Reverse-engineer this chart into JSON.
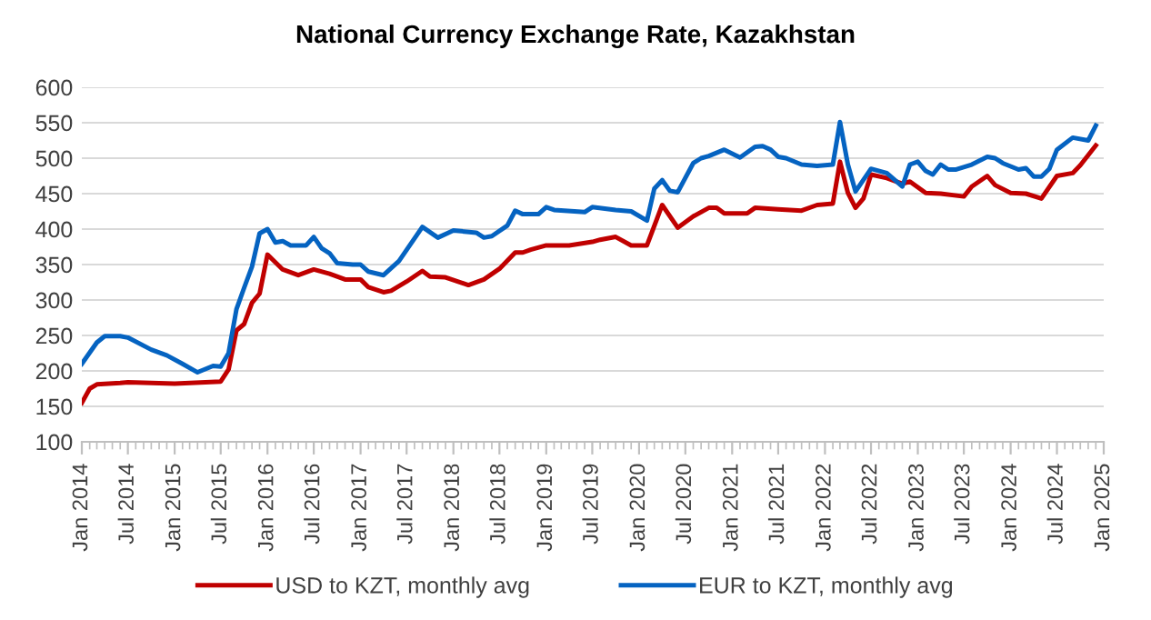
{
  "chart_data": {
    "type": "line",
    "title": "National Currency Exchange Rate, Kazakhstan",
    "series": [
      {
        "name": "USD to KZT, monthly avg",
        "color": "#c00000",
        "x": [
          "2014-01",
          "2014-02",
          "2014-03",
          "2014-06",
          "2014-07",
          "2015-01",
          "2015-07",
          "2015-08",
          "2015-09",
          "2015-10",
          "2015-11",
          "2015-12",
          "2016-01",
          "2016-03",
          "2016-05",
          "2016-07",
          "2016-09",
          "2016-11",
          "2016-12",
          "2017-01",
          "2017-02",
          "2017-04",
          "2017-05",
          "2017-07",
          "2017-09",
          "2017-10",
          "2017-12",
          "2018-03",
          "2018-05",
          "2018-07",
          "2018-09",
          "2018-10",
          "2018-11",
          "2019-01",
          "2019-04",
          "2019-07",
          "2019-08",
          "2019-10",
          "2019-12",
          "2020-02",
          "2020-04",
          "2020-06",
          "2020-08",
          "2020-10",
          "2020-11",
          "2020-12",
          "2021-03",
          "2021-04",
          "2021-07",
          "2021-10",
          "2021-12",
          "2022-02",
          "2022-03",
          "2022-04",
          "2022-05",
          "2022-06",
          "2022-07",
          "2022-09",
          "2022-11",
          "2022-12",
          "2023-02",
          "2023-04",
          "2023-07",
          "2023-08",
          "2023-10",
          "2023-11",
          "2024-01",
          "2024-03",
          "2024-05",
          "2024-07",
          "2024-09",
          "2024-10",
          "2024-12"
        ],
        "values": [
          155,
          175,
          181,
          183,
          184,
          182,
          185,
          202,
          257,
          266,
          296,
          309,
          364,
          343,
          335,
          343,
          337,
          329,
          329,
          329,
          318,
          311,
          313,
          326,
          341,
          333,
          332,
          321,
          329,
          344,
          367,
          367,
          371,
          377,
          377,
          382,
          385,
          389,
          377,
          377,
          434,
          402,
          418,
          430,
          430,
          422,
          422,
          430,
          428,
          426,
          434,
          436,
          495,
          451,
          430,
          443,
          477,
          472,
          464,
          467,
          451,
          450,
          446,
          460,
          475,
          462,
          451,
          450,
          443,
          475,
          479,
          490,
          518
        ]
      },
      {
        "name": "EUR to KZT, monthly avg",
        "color": "#0563c1",
        "x": [
          "2014-01",
          "2014-03",
          "2014-04",
          "2014-06",
          "2014-07",
          "2014-10",
          "2014-12",
          "2015-02",
          "2015-04",
          "2015-06",
          "2015-07",
          "2015-08",
          "2015-09",
          "2015-10",
          "2015-11",
          "2015-12",
          "2016-01",
          "2016-02",
          "2016-03",
          "2016-04",
          "2016-06",
          "2016-07",
          "2016-08",
          "2016-09",
          "2016-10",
          "2016-12",
          "2017-01",
          "2017-02",
          "2017-04",
          "2017-06",
          "2017-09",
          "2017-11",
          "2018-01",
          "2018-04",
          "2018-05",
          "2018-06",
          "2018-08",
          "2018-09",
          "2018-10",
          "2018-12",
          "2019-01",
          "2019-02",
          "2019-06",
          "2019-07",
          "2019-10",
          "2019-12",
          "2020-02",
          "2020-03",
          "2020-04",
          "2020-05",
          "2020-06",
          "2020-08",
          "2020-09",
          "2020-10",
          "2020-12",
          "2021-02",
          "2021-04",
          "2021-05",
          "2021-06",
          "2021-07",
          "2021-08",
          "2021-10",
          "2021-12",
          "2022-02",
          "2022-03",
          "2022-04",
          "2022-05",
          "2022-07",
          "2022-09",
          "2022-11",
          "2022-12",
          "2023-01",
          "2023-02",
          "2023-03",
          "2023-04",
          "2023-05",
          "2023-06",
          "2023-08",
          "2023-10",
          "2023-11",
          "2023-12",
          "2024-02",
          "2024-03",
          "2024-04",
          "2024-05",
          "2024-06",
          "2024-07",
          "2024-09",
          "2024-11",
          "2024-12"
        ],
        "values": [
          210,
          240,
          249,
          249,
          247,
          230,
          222,
          210,
          198,
          207,
          206,
          225,
          287,
          317,
          347,
          394,
          400,
          381,
          383,
          377,
          377,
          389,
          373,
          366,
          352,
          350,
          350,
          340,
          335,
          355,
          403,
          388,
          398,
          395,
          388,
          390,
          405,
          426,
          421,
          421,
          431,
          427,
          424,
          431,
          427,
          425,
          412,
          457,
          469,
          454,
          452,
          493,
          500,
          503,
          512,
          501,
          516,
          517,
          512,
          502,
          500,
          491,
          489,
          491,
          551,
          491,
          453,
          485,
          479,
          460,
          491,
          495,
          482,
          477,
          491,
          484,
          484,
          491,
          502,
          500,
          493,
          484,
          486,
          474,
          474,
          485,
          512,
          529,
          525,
          546
        ]
      }
    ],
    "xlim": [
      "2014-01",
      "2025-01"
    ],
    "xticks": [
      {
        "value": "2014-01",
        "label": "Jan 2014"
      },
      {
        "value": "2014-07",
        "label": "Jul 2014"
      },
      {
        "value": "2015-01",
        "label": "Jan 2015"
      },
      {
        "value": "2015-07",
        "label": "Jul 2015"
      },
      {
        "value": "2016-01",
        "label": "Jan 2016"
      },
      {
        "value": "2016-07",
        "label": "Jul 2016"
      },
      {
        "value": "2017-01",
        "label": "Jan 2017"
      },
      {
        "value": "2017-07",
        "label": "Jul 2017"
      },
      {
        "value": "2018-01",
        "label": "Jan 2018"
      },
      {
        "value": "2018-07",
        "label": "Jul 2018"
      },
      {
        "value": "2019-01",
        "label": "Jan 2019"
      },
      {
        "value": "2019-07",
        "label": "Jul 2019"
      },
      {
        "value": "2020-01",
        "label": "Jan 2020"
      },
      {
        "value": "2020-07",
        "label": "Jul 2020"
      },
      {
        "value": "2021-01",
        "label": "Jan 2021"
      },
      {
        "value": "2021-07",
        "label": "Jul 2021"
      },
      {
        "value": "2022-01",
        "label": "Jan 2022"
      },
      {
        "value": "2022-07",
        "label": "Jul 2022"
      },
      {
        "value": "2023-01",
        "label": "Jan 2023"
      },
      {
        "value": "2023-07",
        "label": "Jul 2023"
      },
      {
        "value": "2024-01",
        "label": "Jan 2024"
      },
      {
        "value": "2024-07",
        "label": "Jul 2024"
      },
      {
        "value": "2025-01",
        "label": "Jan 2025"
      }
    ],
    "ylim": [
      100,
      600
    ],
    "yticks": [
      100,
      150,
      200,
      250,
      300,
      350,
      400,
      450,
      500,
      550,
      600
    ],
    "grid": "y",
    "legend": "bottom",
    "marker": "none",
    "line_style": "solid"
  }
}
